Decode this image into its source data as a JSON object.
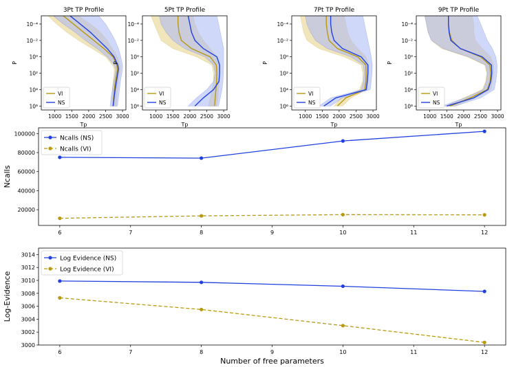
{
  "colors": {
    "ns": "#1f3fe0",
    "vi": "#b8990f",
    "ns_fill": "#aab8f5",
    "vi_fill": "#ecdca4",
    "overlap_fill": "#b6afc8"
  },
  "chart_data": [
    {
      "type": "line",
      "title": "3Pt TP Profile",
      "xlabel": "Tp",
      "ylabel": "P",
      "yscale": "log",
      "xlim": [
        600,
        3100
      ],
      "ylim": [
        1e-05,
        3000000.0
      ],
      "xticks": [
        1000,
        1500,
        2000,
        2500,
        3000
      ],
      "yticks": [
        "10^-4",
        "10^-2",
        "10^0",
        "10^2",
        "10^4",
        "10^6"
      ],
      "legend": {
        "position": "lower-left",
        "entries": [
          "VI",
          "NS"
        ]
      },
      "series": [
        {
          "name": "VI",
          "P": [
            1e-05,
            0.0001,
            0.001,
            0.01,
            0.1,
            1,
            10,
            30,
            100,
            1000,
            10000,
            100000,
            1000000
          ],
          "T": [
            1250,
            1550,
            1850,
            2150,
            2450,
            2720,
            2830,
            2850,
            2830,
            2790,
            2760,
            2740,
            2730
          ],
          "lower": [
            800,
            1050,
            1350,
            1700,
            2100,
            2500,
            2700,
            2750,
            2750,
            2720,
            2700,
            2690,
            2680
          ],
          "upper": [
            1700,
            2050,
            2350,
            2550,
            2700,
            2850,
            2930,
            2940,
            2920,
            2880,
            2850,
            2830,
            2820
          ]
        },
        {
          "name": "NS",
          "P": [
            1e-05,
            0.0001,
            0.001,
            0.01,
            0.1,
            1,
            10,
            30,
            100,
            1000,
            10000,
            100000,
            1000000
          ],
          "T": [
            1450,
            1750,
            2050,
            2300,
            2550,
            2750,
            2860,
            2880,
            2860,
            2820,
            2780,
            2750,
            2720
          ],
          "lower": [
            950,
            1250,
            1600,
            1900,
            2250,
            2550,
            2750,
            2800,
            2780,
            2740,
            2700,
            2660,
            2630
          ],
          "upper": [
            2300,
            2500,
            2650,
            2780,
            2880,
            2950,
            3000,
            3000,
            2980,
            2940,
            2910,
            2880,
            2850
          ]
        }
      ]
    },
    {
      "type": "line",
      "title": "5Pt TP Profile",
      "xlabel": "Tp",
      "ylabel": "P",
      "yscale": "log",
      "xlim": [
        600,
        3100
      ],
      "ylim": [
        1e-05,
        3000000.0
      ],
      "xticks": [
        1000,
        1500,
        2000,
        2500,
        3000
      ],
      "yticks": [
        "10^-4",
        "10^-2",
        "10^0",
        "10^2",
        "10^4",
        "10^6"
      ],
      "legend": {
        "position": "lower-left",
        "entries": [
          "VI",
          "NS"
        ]
      },
      "series": [
        {
          "name": "VI",
          "P": [
            1e-05,
            0.0001,
            0.001,
            0.01,
            0.1,
            1,
            10,
            100,
            1000,
            10000,
            100000,
            1000000
          ],
          "T": [
            1650,
            1650,
            1680,
            1750,
            2050,
            2600,
            2780,
            2800,
            2790,
            2770,
            2750,
            2730
          ],
          "lower": [
            850,
            950,
            1050,
            1150,
            1500,
            2200,
            2650,
            2700,
            2700,
            2650,
            2600,
            2550
          ],
          "upper": [
            2100,
            2150,
            2250,
            2400,
            2600,
            2800,
            2880,
            2880,
            2870,
            2850,
            2830,
            2800
          ]
        },
        {
          "name": "NS",
          "P": [
            1e-05,
            0.0001,
            0.001,
            0.01,
            0.1,
            1,
            10,
            100,
            1000,
            10000,
            100000,
            1000000
          ],
          "T": [
            1950,
            2000,
            2050,
            2150,
            2400,
            2800,
            2880,
            2880,
            2860,
            2700,
            2400,
            2150
          ],
          "lower": [
            1100,
            1150,
            1300,
            1500,
            1850,
            2450,
            2700,
            2750,
            2700,
            2500,
            2200,
            1950
          ],
          "upper": [
            2800,
            2850,
            2900,
            2950,
            3000,
            3000,
            3000,
            2990,
            2980,
            2950,
            2900,
            2850
          ]
        }
      ]
    },
    {
      "type": "line",
      "title": "7Pt TP Profile",
      "xlabel": "Tp",
      "ylabel": "P",
      "yscale": "log",
      "xlim": [
        600,
        3100
      ],
      "ylim": [
        1e-05,
        3000000.0
      ],
      "xticks": [
        1000,
        1500,
        2000,
        2500,
        3000
      ],
      "yticks": [
        "10^-4",
        "10^-2",
        "10^0",
        "10^2",
        "10^4",
        "10^6"
      ],
      "legend": {
        "position": "lower-left",
        "entries": [
          "VI",
          "NS"
        ]
      },
      "series": [
        {
          "name": "VI",
          "P": [
            1e-05,
            0.0001,
            0.001,
            0.01,
            0.1,
            1,
            10,
            100,
            1000,
            10000,
            100000,
            1000000
          ],
          "T": [
            1620,
            1620,
            1650,
            1700,
            1950,
            2550,
            2790,
            2800,
            2790,
            2760,
            2200,
            1950
          ],
          "lower": [
            850,
            900,
            950,
            1050,
            1400,
            2150,
            2650,
            2700,
            2690,
            2600,
            2050,
            1850
          ],
          "upper": [
            2150,
            2200,
            2250,
            2350,
            2550,
            2800,
            2880,
            2870,
            2860,
            2830,
            2350,
            2100
          ]
        },
        {
          "name": "NS",
          "P": [
            1e-05,
            0.0001,
            0.001,
            0.01,
            0.1,
            1,
            10,
            100,
            1000,
            10000,
            100000,
            1000000
          ],
          "T": [
            1750,
            1750,
            1780,
            1850,
            2100,
            2650,
            2850,
            2850,
            2830,
            2800,
            1900,
            1550
          ],
          "lower": [
            1000,
            1050,
            1150,
            1300,
            1650,
            2350,
            2720,
            2740,
            2720,
            2650,
            1750,
            1400
          ],
          "upper": [
            2700,
            2750,
            2800,
            2850,
            2900,
            2950,
            2980,
            2970,
            2950,
            2920,
            2100,
            1750
          ]
        }
      ]
    },
    {
      "type": "line",
      "title": "9Pt TP Profile",
      "xlabel": "Tp",
      "ylabel": "P",
      "yscale": "log",
      "xlim": [
        600,
        3100
      ],
      "ylim": [
        1e-05,
        3000000.0
      ],
      "xticks": [
        1000,
        1500,
        2000,
        2500,
        3000
      ],
      "yticks": [
        "10^-4",
        "10^-2",
        "10^0",
        "10^2",
        "10^4",
        "10^6"
      ],
      "legend": {
        "position": "lower-left",
        "entries": [
          "VI",
          "NS"
        ]
      },
      "series": [
        {
          "name": "VI",
          "P": [
            1e-05,
            0.0001,
            0.001,
            0.01,
            0.1,
            1,
            10,
            100,
            1000,
            10000,
            100000,
            1000000
          ],
          "T": [
            1550,
            1550,
            1580,
            1650,
            1900,
            2500,
            2770,
            2800,
            2780,
            2700,
            2200,
            1600
          ],
          "lower": [
            850,
            900,
            950,
            1050,
            1350,
            2100,
            2620,
            2680,
            2650,
            2550,
            2000,
            1450
          ],
          "upper": [
            2250,
            2300,
            2300,
            2350,
            2550,
            2800,
            2880,
            2880,
            2850,
            2800,
            2350,
            1750
          ]
        },
        {
          "name": "NS",
          "P": [
            1e-05,
            0.0001,
            0.001,
            0.01,
            0.1,
            1,
            10,
            100,
            1000,
            10000,
            100000,
            1000000
          ],
          "T": [
            1550,
            1550,
            1570,
            1620,
            1900,
            2550,
            2820,
            2830,
            2800,
            2720,
            2300,
            1500
          ],
          "lower": [
            850,
            900,
            950,
            1050,
            1400,
            2150,
            2650,
            2700,
            2670,
            2580,
            2050,
            1350
          ],
          "upper": [
            2400,
            2500,
            2600,
            2700,
            2850,
            2950,
            2990,
            2980,
            2950,
            2900,
            2500,
            1750
          ]
        }
      ]
    },
    {
      "type": "line",
      "title": "",
      "xlabel": "",
      "ylabel": "Ncalls",
      "xlim": [
        5.7,
        12.3
      ],
      "ylim": [
        3500,
        106000
      ],
      "xticks": [
        6,
        7,
        8,
        9,
        10,
        11,
        12
      ],
      "yticks": [
        20000,
        40000,
        60000,
        80000,
        100000
      ],
      "legend": {
        "position": "upper-left",
        "entries": [
          "Ncalls (NS)",
          "Ncalls (VI)"
        ]
      },
      "x": [
        6,
        8,
        10,
        12
      ],
      "series": [
        {
          "name": "Ncalls (NS)",
          "values": [
            75000,
            74200,
            92200,
            102300
          ]
        },
        {
          "name": "Ncalls (VI)",
          "values": [
            11000,
            13500,
            14800,
            14600
          ]
        }
      ]
    },
    {
      "type": "line",
      "title": "",
      "xlabel": "Number of free parameters",
      "ylabel": "Log-Evidence",
      "xlim": [
        5.7,
        12.3
      ],
      "ylim": [
        3000,
        3015
      ],
      "xticks": [
        6,
        7,
        8,
        9,
        10,
        11,
        12
      ],
      "yticks": [
        3000,
        3002,
        3004,
        3006,
        3008,
        3010,
        3012,
        3014
      ],
      "legend": {
        "position": "upper-left",
        "entries": [
          "Log Evidence (NS)",
          "Log Evidence (VI)"
        ]
      },
      "x": [
        6,
        8,
        10,
        12
      ],
      "series": [
        {
          "name": "Log Evidence (NS)",
          "values": [
            3009.9,
            3009.7,
            3009.1,
            3008.3
          ]
        },
        {
          "name": "Log Evidence (VI)",
          "values": [
            3007.3,
            3005.5,
            3003.0,
            3000.4
          ]
        }
      ]
    }
  ]
}
